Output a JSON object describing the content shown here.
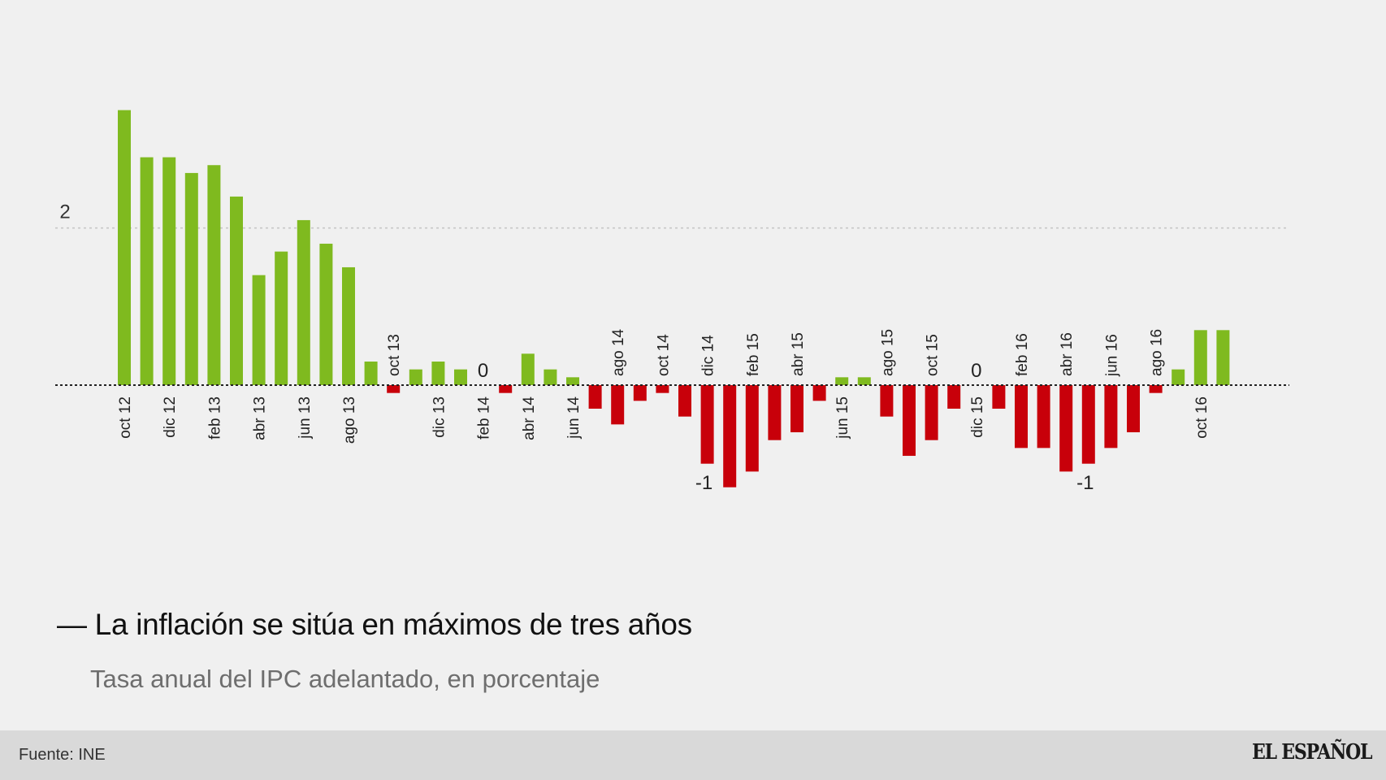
{
  "chart_data": {
    "type": "bar",
    "title": "— La inflación se sitúa en máximos de tres años",
    "subtitle": "Tasa anual del IPC adelantado, en porcentaje",
    "categories": [
      "oct 12",
      "nov 12",
      "dic 12",
      "ene 13",
      "feb 13",
      "mar 13",
      "abr 13",
      "may 13",
      "jun 13",
      "jul 13",
      "ago 13",
      "sep 13",
      "oct 13",
      "nov 13",
      "dic 13",
      "ene 14",
      "feb 14",
      "mar 14",
      "abr 14",
      "may 14",
      "jun 14",
      "jul 14",
      "ago 14",
      "sep 14",
      "oct 14",
      "nov 14",
      "dic 14",
      "ene 15",
      "feb 15",
      "mar 15",
      "abr 15",
      "may 15",
      "jun 15",
      "jul 15",
      "ago 15",
      "sep 15",
      "oct 15",
      "nov 15",
      "dic 15",
      "ene 16",
      "feb 16",
      "mar 16",
      "abr 16",
      "may 16",
      "jun 16",
      "jul 16",
      "ago 16",
      "sep 16",
      "oct 16",
      "nov 16"
    ],
    "tick_labels": [
      "oct 12",
      "dic 12",
      "feb 13",
      "abr 13",
      "jun 13",
      "ago 13",
      "oct 13",
      "dic 13",
      "feb 14",
      "abr 14",
      "jun 14",
      "ago 14",
      "oct 14",
      "dic 14",
      "feb 15",
      "abr 15",
      "jun 15",
      "ago 15",
      "oct 15",
      "dic 15",
      "feb 16",
      "abr 16",
      "jun 16",
      "ago 16",
      "oct 16"
    ],
    "values": [
      3.5,
      2.9,
      2.9,
      2.7,
      2.8,
      2.4,
      1.4,
      1.7,
      2.1,
      1.8,
      1.5,
      0.3,
      -0.1,
      0.2,
      0.3,
      0.2,
      0.0,
      -0.1,
      0.4,
      0.2,
      0.1,
      -0.3,
      -0.5,
      -0.2,
      -0.1,
      -0.4,
      -1.0,
      -1.3,
      -1.1,
      -0.7,
      -0.6,
      -0.2,
      0.1,
      0.1,
      -0.4,
      -0.9,
      -0.7,
      -0.3,
      0.0,
      -0.3,
      -0.8,
      -0.8,
      -1.1,
      -1.0,
      -0.8,
      -0.6,
      -0.1,
      0.2,
      0.7,
      0.7
    ],
    "yticks": [
      {
        "value": 2,
        "label": "2"
      }
    ],
    "annotations": [
      {
        "category": "feb 14",
        "value": 0,
        "label": "0"
      },
      {
        "category": "dic 14",
        "value": -1,
        "label": "-1"
      },
      {
        "category": "dic 15",
        "value": 0,
        "label": "0"
      },
      {
        "category": "may 16",
        "value": -1,
        "label": "-1"
      }
    ],
    "colors": {
      "positive": "#7fba1f",
      "negative": "#c8000a"
    },
    "grid": true,
    "legend": "none"
  },
  "footer": {
    "source": "Fuente: INE",
    "logo": "EL ESPAÑOL"
  }
}
